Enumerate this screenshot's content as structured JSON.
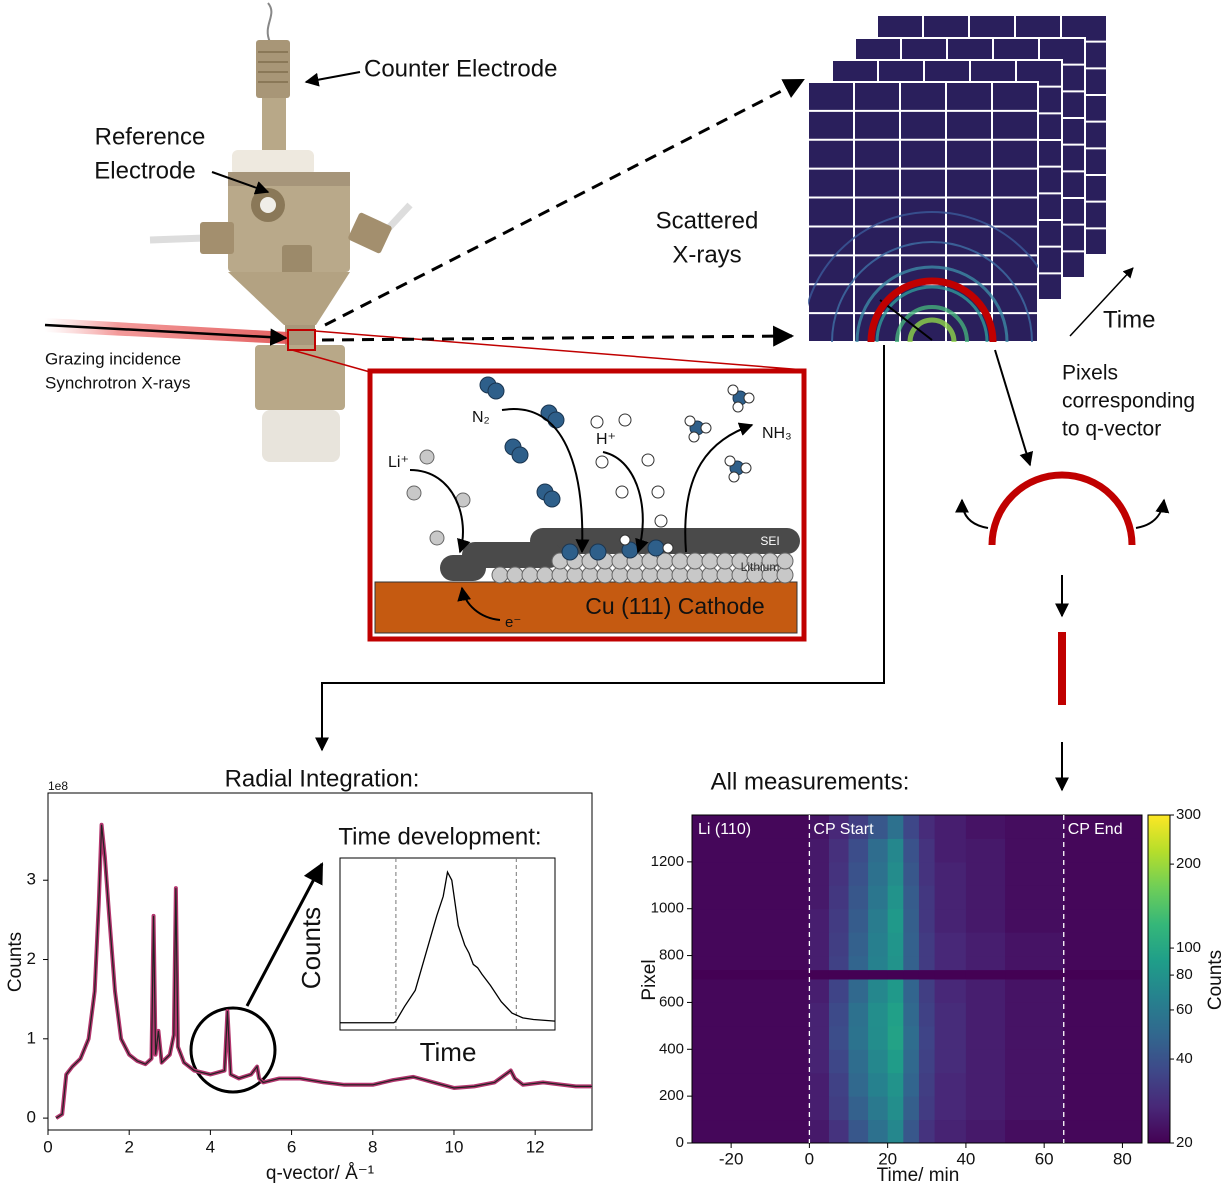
{
  "cell": {
    "counter_electrode": "Counter Electrode",
    "reference_electrode": [
      "Reference",
      "Electrode"
    ],
    "xray_source": [
      "Grazing incidence",
      "Synchrotron X-rays"
    ]
  },
  "reaction": {
    "n2": "N₂",
    "h_plus": "H⁺",
    "nh3": "NH₃",
    "li_plus": "Li⁺",
    "electron": "e⁻",
    "sei": "SEI",
    "lithium": "Lithium",
    "cathode": "Cu (111) Cathode"
  },
  "detector": {
    "scattered": [
      "Scattered",
      "X-rays"
    ],
    "time": "Time",
    "pixels": [
      "Pixels",
      "corresponding",
      "to q-vector"
    ]
  },
  "chart_data": [
    {
      "type": "line",
      "title": "Radial Integration:",
      "xlabel": "q-vector/ Å⁻¹",
      "ylabel": "Counts",
      "offset_label": "1e8",
      "color": "#b3376f",
      "x": [
        0.2,
        0.35,
        0.45,
        0.6,
        0.8,
        1.0,
        1.15,
        1.25,
        1.32,
        1.4,
        1.5,
        1.65,
        1.8,
        2.0,
        2.2,
        2.4,
        2.55,
        2.6,
        2.65,
        2.72,
        2.8,
        3.0,
        3.1,
        3.15,
        3.2,
        3.35,
        3.6,
        4.0,
        4.35,
        4.42,
        4.5,
        4.7,
        5.0,
        5.15,
        5.2,
        5.3,
        5.7,
        6.2,
        6.8,
        7.3,
        8.0,
        8.5,
        9.0,
        9.5,
        10.0,
        10.5,
        11.0,
        11.4,
        11.5,
        11.7,
        12.2,
        13.0,
        13.4
      ],
      "values": [
        0.0,
        0.05,
        0.55,
        0.65,
        0.75,
        1.0,
        1.6,
        2.7,
        3.7,
        3.3,
        2.6,
        1.6,
        1.0,
        0.8,
        0.72,
        0.68,
        0.75,
        2.55,
        0.8,
        1.1,
        0.7,
        0.8,
        1.05,
        2.9,
        0.9,
        0.7,
        0.6,
        0.55,
        0.6,
        1.35,
        0.55,
        0.5,
        0.55,
        0.65,
        0.5,
        0.45,
        0.5,
        0.5,
        0.45,
        0.42,
        0.42,
        0.48,
        0.52,
        0.45,
        0.38,
        0.4,
        0.45,
        0.6,
        0.5,
        0.42,
        0.45,
        0.4,
        0.4
      ],
      "xlim": [
        0,
        13.4
      ],
      "ylim": [
        -0.15,
        4.1
      ],
      "xticks": [
        0,
        2,
        4,
        6,
        8,
        10,
        12
      ],
      "yticks": [
        0,
        1,
        2,
        3
      ]
    },
    {
      "type": "line",
      "title": "Time development:",
      "xlabel": "Time",
      "ylabel": "Counts",
      "color": "#000000",
      "x": [
        0,
        25,
        26,
        30,
        35,
        40,
        45,
        48,
        50,
        52,
        55,
        58,
        60,
        62,
        64,
        66,
        70,
        75,
        80,
        85,
        90,
        100
      ],
      "values": [
        0.02,
        0.02,
        0.03,
        0.12,
        0.22,
        0.45,
        0.68,
        0.8,
        0.95,
        0.9,
        0.62,
        0.5,
        0.45,
        0.38,
        0.36,
        0.32,
        0.25,
        0.15,
        0.08,
        0.05,
        0.04,
        0.03
      ],
      "xlim": [
        0,
        100
      ],
      "ylim": [
        0,
        1
      ],
      "vlines": [
        26,
        82
      ]
    },
    {
      "type": "heatmap",
      "title": "All measurements:",
      "xlabel": "Time/ min",
      "ylabel": "Pixel",
      "x_bins": [
        -30,
        0,
        5,
        10,
        15,
        20,
        24,
        28,
        32,
        40,
        50,
        65,
        85
      ],
      "y_bins": [
        0,
        100,
        200,
        300,
        400,
        500,
        600,
        700,
        740,
        800,
        900,
        1000,
        1100,
        1200,
        1300,
        1400
      ],
      "values": [
        [
          21,
          24,
          30,
          42,
          55,
          70,
          42,
          30,
          26,
          24,
          22,
          21
        ],
        [
          21,
          25,
          33,
          46,
          60,
          76,
          45,
          32,
          27,
          25,
          23,
          21
        ],
        [
          21,
          25,
          34,
          50,
          66,
          80,
          48,
          33,
          27,
          25,
          23,
          21
        ],
        [
          21,
          26,
          36,
          52,
          70,
          88,
          50,
          34,
          28,
          25,
          23,
          21
        ],
        [
          21,
          26,
          38,
          56,
          75,
          95,
          52,
          35,
          28,
          25,
          23,
          21
        ],
        [
          21,
          26,
          37,
          55,
          76,
          92,
          50,
          34,
          28,
          25,
          23,
          21
        ],
        [
          21,
          25,
          35,
          50,
          70,
          85,
          48,
          33,
          27,
          25,
          23,
          21
        ],
        [
          20,
          20,
          20,
          20,
          20,
          20,
          20,
          20,
          20,
          20,
          20,
          20
        ],
        [
          21,
          25,
          34,
          48,
          66,
          80,
          46,
          32,
          27,
          25,
          23,
          21
        ],
        [
          21,
          25,
          33,
          46,
          64,
          82,
          46,
          32,
          27,
          25,
          23,
          21
        ],
        [
          21,
          25,
          32,
          44,
          62,
          85,
          45,
          31,
          26,
          24,
          22,
          21
        ],
        [
          21,
          24,
          31,
          42,
          58,
          80,
          44,
          31,
          26,
          24,
          22,
          21
        ],
        [
          21,
          24,
          30,
          40,
          55,
          74,
          42,
          30,
          26,
          24,
          22,
          21
        ],
        [
          21,
          24,
          29,
          38,
          52,
          70,
          40,
          30,
          25,
          24,
          22,
          21
        ],
        [
          21,
          23,
          27,
          33,
          42,
          55,
          36,
          28,
          25,
          23,
          22,
          21
        ]
      ],
      "xlim": [
        -30,
        85
      ],
      "ylim": [
        0,
        1400
      ],
      "xticks": [
        -20,
        0,
        20,
        40,
        60,
        80
      ],
      "yticks": [
        0,
        200,
        400,
        600,
        800,
        1000,
        1200
      ],
      "vlines": [
        0,
        65
      ],
      "annotations": [
        "Li (110)",
        "CP Start",
        "CP End"
      ],
      "colorbar": {
        "label": "Counts",
        "scale": "log",
        "lim": [
          20,
          300
        ],
        "ticks": [
          20,
          40,
          60,
          80,
          100,
          200,
          300
        ],
        "colors": [
          "#440154",
          "#482878",
          "#3e4989",
          "#31688e",
          "#26828e",
          "#1f9e89",
          "#35b779",
          "#6ece58",
          "#b5de2b",
          "#fde725"
        ]
      }
    }
  ]
}
